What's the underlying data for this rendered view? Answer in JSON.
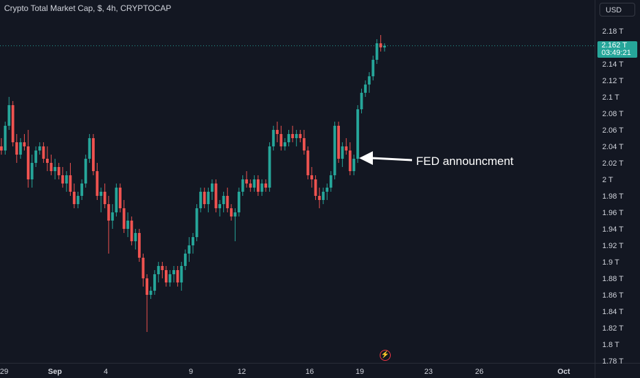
{
  "header": {
    "title": "Crypto Total Market Cap, $, 4h, CRYPTOCAP"
  },
  "toolbar": {
    "currency_label": "USD"
  },
  "price_tag": {
    "price": "2.162 T",
    "countdown": "03:49:21"
  },
  "annotation": {
    "text": "FED announcment"
  },
  "colors": {
    "background": "#131722",
    "up": "#26a69a",
    "down": "#ef5350",
    "text": "#d1d4dc"
  },
  "icons": {
    "replay": "lightning-icon"
  },
  "chart_data": {
    "type": "candlestick",
    "unit": "T",
    "ylim": [
      1.77,
      2.19
    ],
    "y_ticks": [
      "2.18 T",
      "2.16 T",
      "2.14 T",
      "2.12 T",
      "2.1 T",
      "2.08 T",
      "2.06 T",
      "2.04 T",
      "2.02 T",
      "2 T",
      "1.98 T",
      "1.96 T",
      "1.94 T",
      "1.92 T",
      "1.9 T",
      "1.88 T",
      "1.86 T",
      "1.84 T",
      "1.82 T",
      "1.8 T",
      "1.78 T"
    ],
    "x_ticks": [
      "29",
      "Sep",
      "4",
      "9",
      "12",
      "16",
      "19",
      "23",
      "26",
      "Oct"
    ],
    "last_price": 2.162,
    "ohlc": [
      [
        2.04,
        2.05,
        2.03,
        2.035
      ],
      [
        2.035,
        2.07,
        2.03,
        2.065
      ],
      [
        2.065,
        2.1,
        2.06,
        2.09
      ],
      [
        2.09,
        2.095,
        2.04,
        2.045
      ],
      [
        2.045,
        2.055,
        2.02,
        2.03
      ],
      [
        2.03,
        2.05,
        2.025,
        2.045
      ],
      [
        2.045,
        2.055,
        2.035,
        2.04
      ],
      [
        2.04,
        2.06,
        1.99,
        2.0
      ],
      [
        2.0,
        2.03,
        1.99,
        2.02
      ],
      [
        2.02,
        2.04,
        2.015,
        2.035
      ],
      [
        2.035,
        2.045,
        2.03,
        2.04
      ],
      [
        2.04,
        2.045,
        2.02,
        2.025
      ],
      [
        2.025,
        2.04,
        2.01,
        2.02
      ],
      [
        2.02,
        2.03,
        2.005,
        2.01
      ],
      [
        2.01,
        2.025,
        2.0,
        2.015
      ],
      [
        2.015,
        2.02,
        2.0,
        2.005
      ],
      [
        2.005,
        2.015,
        1.99,
        1.995
      ],
      [
        1.995,
        2.01,
        1.985,
        2.005
      ],
      [
        2.005,
        2.02,
        1.98,
        1.985
      ],
      [
        1.985,
        1.995,
        1.965,
        1.97
      ],
      [
        1.97,
        1.985,
        1.965,
        1.98
      ],
      [
        1.98,
        2.0,
        1.975,
        1.995
      ],
      [
        1.995,
        2.03,
        1.99,
        2.025
      ],
      [
        2.025,
        2.055,
        2.02,
        2.05
      ],
      [
        2.05,
        2.055,
        2.005,
        2.01
      ],
      [
        2.01,
        2.02,
        1.975,
        1.98
      ],
      [
        1.98,
        1.99,
        1.96,
        1.985
      ],
      [
        1.985,
        1.995,
        1.965,
        1.97
      ],
      [
        1.97,
        1.98,
        1.91,
        1.95
      ],
      [
        1.95,
        1.97,
        1.94,
        1.96
      ],
      [
        1.96,
        1.995,
        1.955,
        1.99
      ],
      [
        1.99,
        1.995,
        1.96,
        1.965
      ],
      [
        1.965,
        1.975,
        1.935,
        1.94
      ],
      [
        1.94,
        1.96,
        1.93,
        1.95
      ],
      [
        1.95,
        1.955,
        1.92,
        1.925
      ],
      [
        1.925,
        1.94,
        1.915,
        1.935
      ],
      [
        1.935,
        1.94,
        1.9,
        1.905
      ],
      [
        1.905,
        1.91,
        1.87,
        1.88
      ],
      [
        1.88,
        1.885,
        1.815,
        1.86
      ],
      [
        1.86,
        1.87,
        1.855,
        1.865
      ],
      [
        1.865,
        1.89,
        1.86,
        1.885
      ],
      [
        1.885,
        1.9,
        1.875,
        1.895
      ],
      [
        1.895,
        1.9,
        1.88,
        1.89
      ],
      [
        1.89,
        1.895,
        1.87,
        1.875
      ],
      [
        1.875,
        1.89,
        1.87,
        1.885
      ],
      [
        1.885,
        1.895,
        1.875,
        1.89
      ],
      [
        1.89,
        1.895,
        1.87,
        1.875
      ],
      [
        1.875,
        1.9,
        1.865,
        1.895
      ],
      [
        1.895,
        1.915,
        1.89,
        1.91
      ],
      [
        1.91,
        1.93,
        1.9,
        1.92
      ],
      [
        1.92,
        1.935,
        1.91,
        1.93
      ],
      [
        1.93,
        1.97,
        1.925,
        1.965
      ],
      [
        1.965,
        1.99,
        1.96,
        1.985
      ],
      [
        1.985,
        1.99,
        1.965,
        1.97
      ],
      [
        1.97,
        1.99,
        1.96,
        1.985
      ],
      [
        1.985,
        2.0,
        1.975,
        1.995
      ],
      [
        1.995,
        2.0,
        1.96,
        1.965
      ],
      [
        1.965,
        1.975,
        1.955,
        1.97
      ],
      [
        1.97,
        1.985,
        1.96,
        1.98
      ],
      [
        1.98,
        1.99,
        1.96,
        1.965
      ],
      [
        1.965,
        1.97,
        1.95,
        1.955
      ],
      [
        1.955,
        1.965,
        1.925,
        1.96
      ],
      [
        1.96,
        1.99,
        1.955,
        1.985
      ],
      [
        1.985,
        2.005,
        1.98,
        2.0
      ],
      [
        2.0,
        2.01,
        1.99,
        1.995
      ],
      [
        1.995,
        2.0,
        1.985,
        1.99
      ],
      [
        1.99,
        2.005,
        1.985,
        2.0
      ],
      [
        2.0,
        2.005,
        1.98,
        1.985
      ],
      [
        1.985,
        2.0,
        1.98,
        1.995
      ],
      [
        1.995,
        2.0,
        1.985,
        1.99
      ],
      [
        1.99,
        2.045,
        1.985,
        2.04
      ],
      [
        2.04,
        2.065,
        2.035,
        2.06
      ],
      [
        2.06,
        2.07,
        2.045,
        2.055
      ],
      [
        2.055,
        2.065,
        2.035,
        2.04
      ],
      [
        2.04,
        2.05,
        2.035,
        2.045
      ],
      [
        2.045,
        2.06,
        2.04,
        2.055
      ],
      [
        2.055,
        2.065,
        2.045,
        2.05
      ],
      [
        2.05,
        2.06,
        2.04,
        2.055
      ],
      [
        2.055,
        2.06,
        2.045,
        2.05
      ],
      [
        2.05,
        2.06,
        2.03,
        2.035
      ],
      [
        2.035,
        2.04,
        2.0,
        2.005
      ],
      [
        2.005,
        2.015,
        1.99,
        2.0
      ],
      [
        2.0,
        2.005,
        1.975,
        1.98
      ],
      [
        1.98,
        1.99,
        1.965,
        1.975
      ],
      [
        1.975,
        1.99,
        1.97,
        1.985
      ],
      [
        1.985,
        1.995,
        1.975,
        1.99
      ],
      [
        1.99,
        2.01,
        1.985,
        2.005
      ],
      [
        2.005,
        2.07,
        2.0,
        2.065
      ],
      [
        2.065,
        2.07,
        2.02,
        2.025
      ],
      [
        2.025,
        2.045,
        2.015,
        2.04
      ],
      [
        2.04,
        2.05,
        2.03,
        2.035
      ],
      [
        2.035,
        2.045,
        2.005,
        2.01
      ],
      [
        2.01,
        2.03,
        2.005,
        2.025
      ],
      [
        2.025,
        2.09,
        2.02,
        2.085
      ],
      [
        2.085,
        2.11,
        2.08,
        2.105
      ],
      [
        2.105,
        2.12,
        2.1,
        2.115
      ],
      [
        2.115,
        2.13,
        2.105,
        2.125
      ],
      [
        2.125,
        2.15,
        2.12,
        2.145
      ],
      [
        2.145,
        2.17,
        2.14,
        2.165
      ],
      [
        2.165,
        2.175,
        2.155,
        2.16
      ],
      [
        2.16,
        2.165,
        2.155,
        2.162
      ]
    ]
  }
}
